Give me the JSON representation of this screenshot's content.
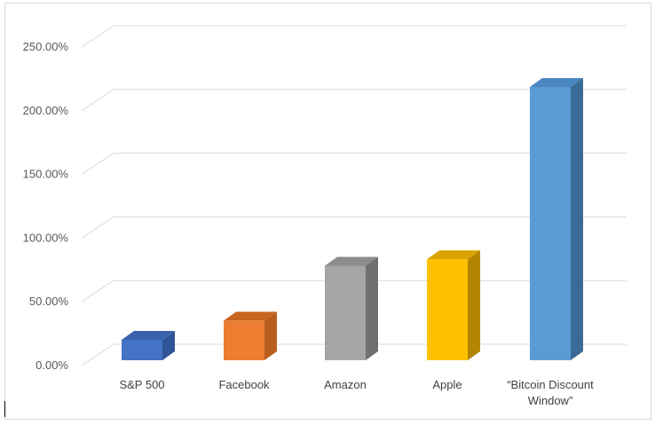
{
  "chart_data": {
    "type": "bar",
    "style": "3d-column",
    "categories": [
      "S&P 500",
      "Facebook",
      "Amazon",
      "Apple",
      "“Bitcoin Discount Window”"
    ],
    "category_lines": [
      [
        "S&P 500"
      ],
      [
        "Facebook"
      ],
      [
        "Amazon"
      ],
      [
        "Apple"
      ],
      [
        "“Bitcoin Discount",
        "Window”"
      ]
    ],
    "values": [
      16,
      31,
      74,
      79,
      214
    ],
    "colors": [
      "#4472C4",
      "#ED7D31",
      "#A5A5A5",
      "#FFC000",
      "#5B9BD5"
    ],
    "side_colors": [
      "#2F5597",
      "#B85E1F",
      "#6F6F6F",
      "#B38600",
      "#3A6A96"
    ],
    "top_colors": [
      "#3A62AC",
      "#C8651F",
      "#8C8C8C",
      "#D9A300",
      "#4A86C0"
    ],
    "title": "",
    "xlabel": "",
    "ylabel": "",
    "ylim": [
      0,
      250
    ],
    "yticks": [
      0,
      50,
      100,
      150,
      200,
      250
    ],
    "ytick_labels": [
      "0.00%",
      "50.00%",
      "100.00%",
      "150.00%",
      "200.00%",
      "250.00%"
    ],
    "grid": true,
    "legend": "none"
  }
}
